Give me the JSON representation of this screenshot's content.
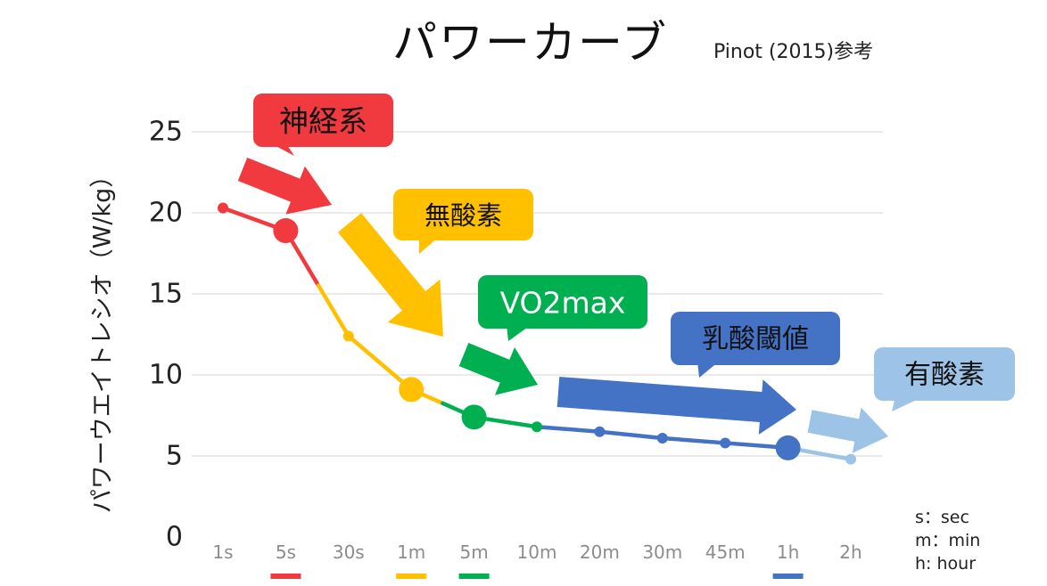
{
  "title": "パワーカーブ",
  "source_note": "Pinot (2015)参考",
  "notes": [
    "s：sec",
    "m：min",
    "h: hour"
  ],
  "colors": {
    "neuro": "#f03a3f",
    "anaerobic": "#ffc000",
    "vo2": "#00b050",
    "lt": "#4472c4",
    "aerobic": "#9dc3e6",
    "grid": "#e3e3e3",
    "tick": "#8c8c8c"
  },
  "chart_data": {
    "type": "line",
    "title": "パワーカーブ",
    "xlabel": "",
    "ylabel": "パワーウエイトレシオ（W/kg）",
    "categories": [
      "1s",
      "5s",
      "30s",
      "1m",
      "5m",
      "10m",
      "20m",
      "30m",
      "45m",
      "1h",
      "2h"
    ],
    "yticks": [
      "0",
      "5",
      "10",
      "15",
      "20",
      "25"
    ],
    "ylim": [
      0,
      26
    ],
    "grid": true,
    "series": [
      {
        "values": [
          20.3,
          18.9,
          12.4,
          9.1,
          7.4,
          6.8,
          6.5,
          6.1,
          5.8,
          5.5,
          4.8
        ]
      }
    ],
    "highlight_points": [
      {
        "category": "5s",
        "value": 18.9,
        "color": "neuro"
      },
      {
        "category": "1m",
        "value": 9.1,
        "color": "anaerobic"
      },
      {
        "category": "5m",
        "value": 7.4,
        "color": "vo2"
      },
      {
        "category": "1h",
        "value": 5.5,
        "color": "lt"
      }
    ],
    "category_underlines": [
      {
        "category": "5s",
        "color": "neuro"
      },
      {
        "category": "1m",
        "color": "anaerobic"
      },
      {
        "category": "5m",
        "color": "vo2"
      },
      {
        "category": "1h",
        "color": "lt"
      }
    ],
    "annotations": [
      {
        "text": "神経系",
        "color": "neuro",
        "text_color": "#111111"
      },
      {
        "text": "無酸素",
        "color": "anaerobic",
        "text_color": "#111111"
      },
      {
        "text": "VO2max",
        "color": "vo2",
        "text_color": "#ffffff"
      },
      {
        "text": "乳酸閾値",
        "color": "lt",
        "text_color": "#111111"
      },
      {
        "text": "有酸素",
        "color": "aerobic",
        "text_color": "#111111"
      }
    ]
  }
}
